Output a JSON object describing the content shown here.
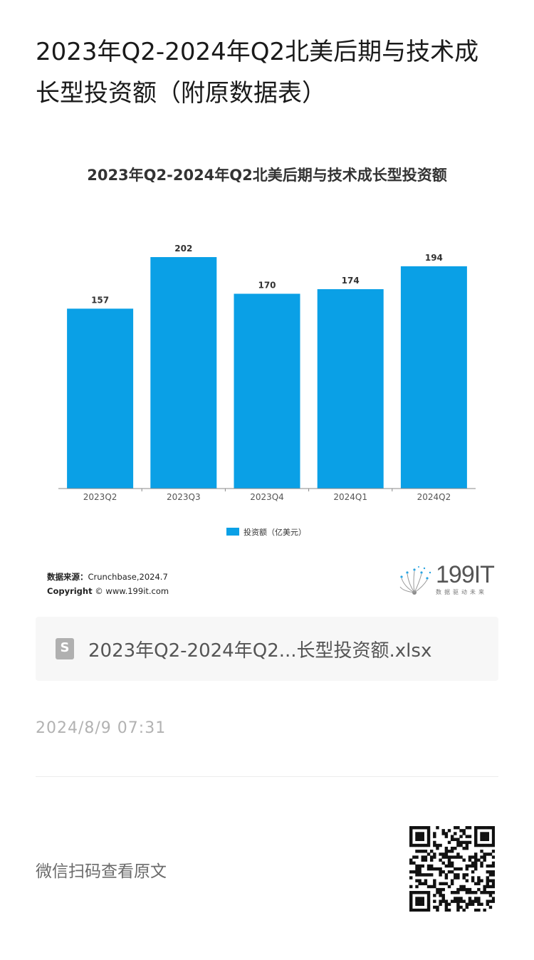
{
  "article": {
    "title": "2023年Q2-2024年Q2北美后期与技术成长型投资额（附原数据表）"
  },
  "chart_data": {
    "type": "bar",
    "title": "2023年Q2-2024年Q2北美后期与技术成长型投资额",
    "categories": [
      "2023Q2",
      "2023Q3",
      "2023Q4",
      "2024Q1",
      "2024Q2"
    ],
    "series": [
      {
        "name": "投资额（亿美元）",
        "values": [
          157,
          202,
          170,
          174,
          194
        ]
      }
    ],
    "ylim": [
      0,
      220
    ],
    "grid": false,
    "legend": "bottom-center",
    "bar_color": "#0aa0e6"
  },
  "source": {
    "label": "数据来源：",
    "value": "Crunchbase,2024.7",
    "copyright_label": "Copyright",
    "copyright_value": "© www.199it.com"
  },
  "logo": {
    "text": "199IT",
    "sub": "数据驱动未来"
  },
  "attachment": {
    "icon": "spreadsheet-icon",
    "icon_letter": "S",
    "filename": "2023年Q2-2024年Q2...长型投资额.xlsx"
  },
  "meta": {
    "timestamp": "2024/8/9 07:31"
  },
  "footer": {
    "scan_label": "微信扫码查看原文"
  }
}
